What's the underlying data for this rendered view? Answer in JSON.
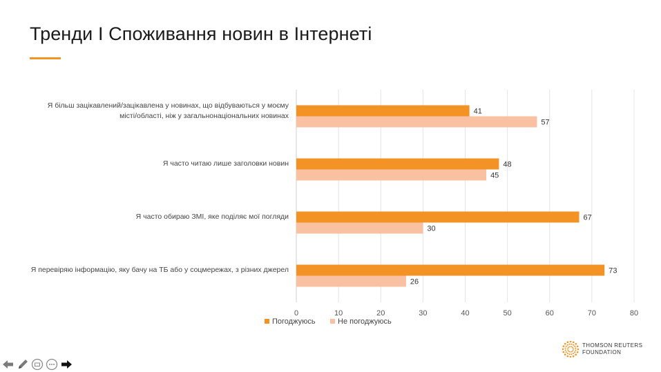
{
  "slide": {
    "title": "Тренди І Споживання новин в Інтернеті",
    "accent_color": "#f39325"
  },
  "chart_data": {
    "type": "bar",
    "orientation": "horizontal",
    "categories": [
      "Я більш зацікавлений/зацікавлена у новинах, що відбуваються у моєму місті/області, ніж у загальнонаціональних новинах",
      "Я часто читаю лише заголовки новин",
      "Я часто обираю ЗМІ, яке поділяє мої погляди",
      "Я перевіряю інформацію, яку бачу на ТБ або у соцмережах, з різних джерел"
    ],
    "category_lines": [
      [
        "Я більш зацікавлений/зацікавлена у новинах, що відбуваються у моєму",
        "місті/області, ніж у загальнонаціональних новинах"
      ],
      [
        "Я часто читаю лише заголовки новин"
      ],
      [
        "Я часто обираю ЗМІ, яке поділяє мої погляди"
      ],
      [
        "Я перевіряю інформацію, яку бачу на ТБ або у соцмережах, з різних джерел"
      ]
    ],
    "series": [
      {
        "name": "Погоджуюсь",
        "color": "#f39325",
        "values": [
          41,
          48,
          67,
          73
        ]
      },
      {
        "name": "Не погоджуюсь",
        "color": "#f9c0a2",
        "values": [
          57,
          45,
          30,
          26
        ]
      }
    ],
    "xlim": [
      0,
      80
    ],
    "xticks": [
      "0",
      "10",
      "20",
      "30",
      "40",
      "50",
      "60",
      "70",
      "80"
    ],
    "grid": true,
    "legend": "bottom-center"
  },
  "logo": {
    "line1": "THOMSON REUTERS",
    "line2": "FOUNDATION"
  },
  "toolbar": {
    "icons": [
      "arrow-left-icon",
      "pen-icon",
      "subtitles-icon",
      "more-icon",
      "arrow-right-icon"
    ]
  }
}
